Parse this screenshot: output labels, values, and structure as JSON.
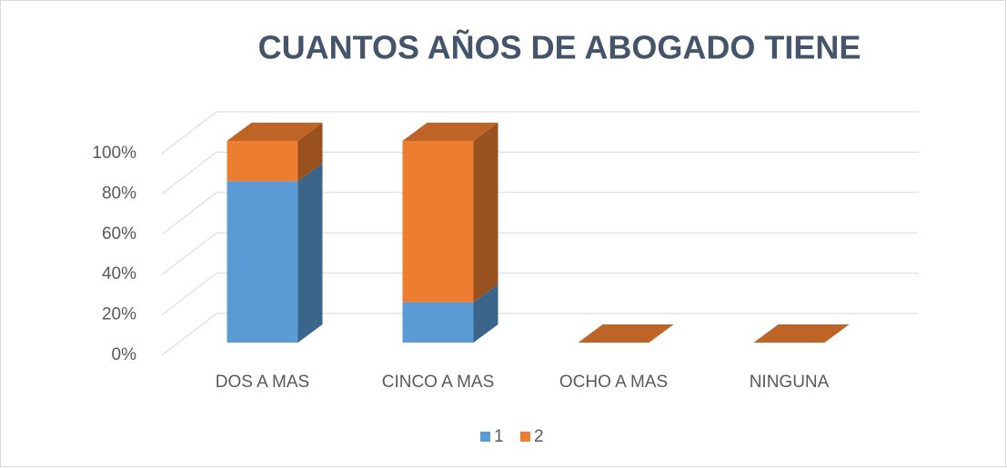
{
  "chart_data": {
    "type": "bar3d_stacked",
    "title": "CUANTOS AÑOS DE ABOGADO TIENE",
    "categories": [
      "DOS A MAS",
      "CINCO A MAS",
      "OCHO A MAS",
      "NINGUNA"
    ],
    "series": [
      {
        "name": "1",
        "color": "#5b9bd5",
        "values": [
          80,
          20,
          0,
          0
        ]
      },
      {
        "name": "2",
        "color": "#ed7d31",
        "values": [
          20,
          80,
          0,
          0
        ]
      }
    ],
    "ylim": [
      0,
      100
    ],
    "yticks": [
      {
        "value": 0,
        "label": "0%"
      },
      {
        "value": 20,
        "label": "20%"
      },
      {
        "value": 40,
        "label": "40%"
      },
      {
        "value": 60,
        "label": "60%"
      },
      {
        "value": 80,
        "label": "80%"
      },
      {
        "value": 100,
        "label": "100%"
      }
    ],
    "grid": true,
    "legend": "bottom"
  }
}
